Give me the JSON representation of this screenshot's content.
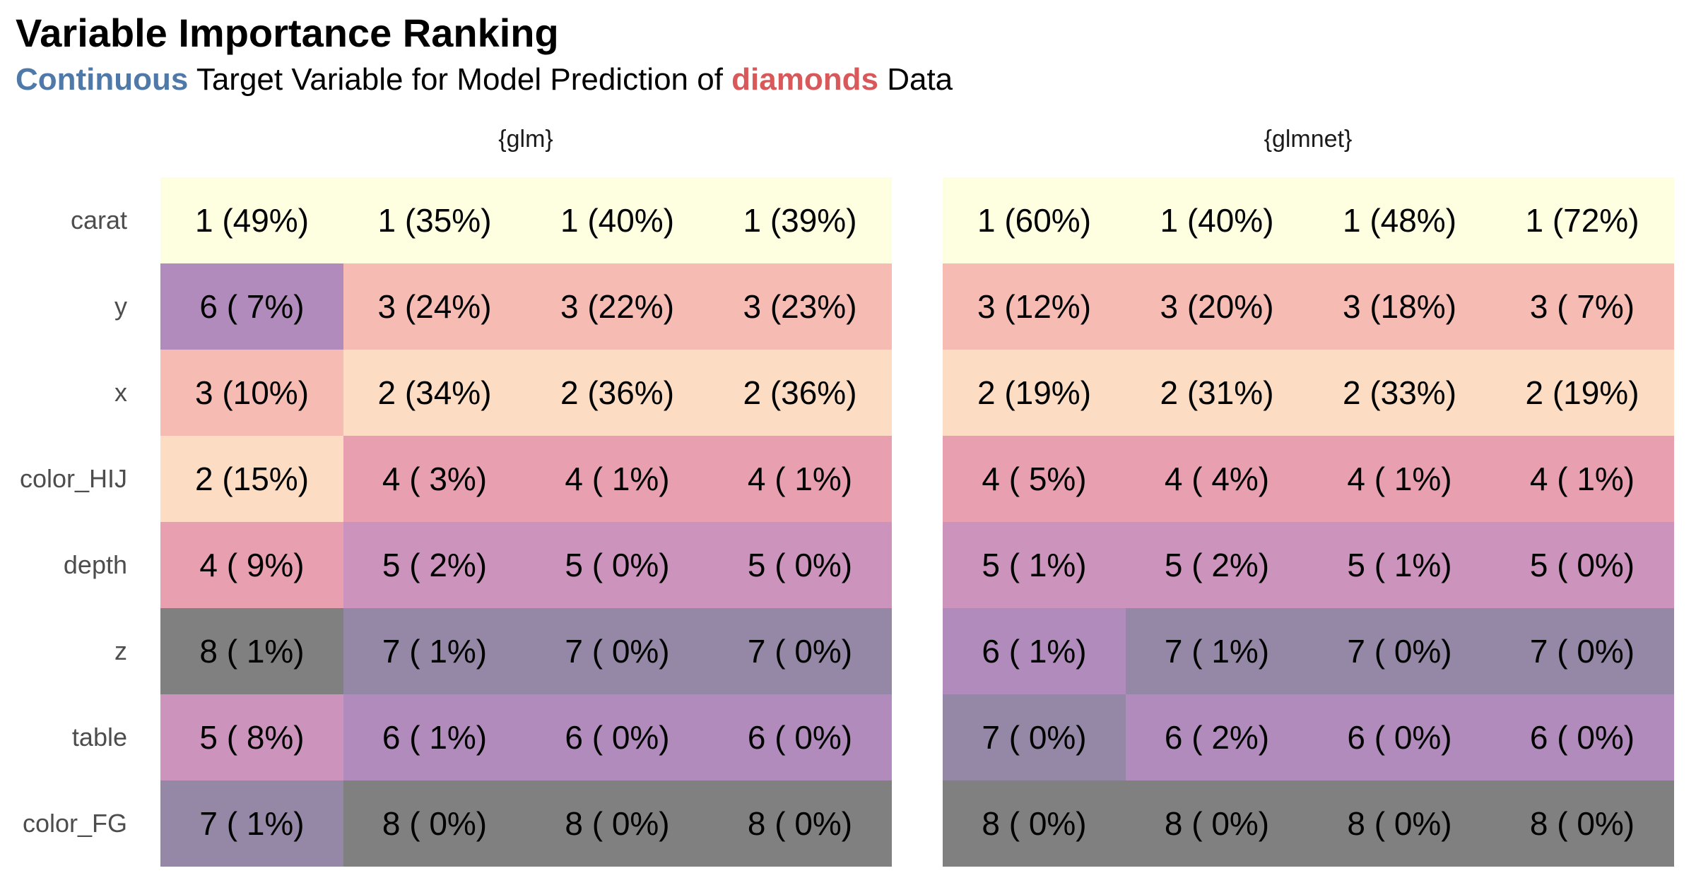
{
  "title": "Variable Importance Ranking",
  "subtitle": {
    "kw1": "Continuous",
    "mid": " Target Variable for Model Prediction of ",
    "kw2": "diamonds",
    "end": " Data",
    "kw1_color": "#4f79a8",
    "kw2_color": "#d9585a"
  },
  "chart_data": {
    "type": "heatmap",
    "title": "Variable Importance Ranking",
    "subtitle": "Continuous Target Variable for Model Prediction of diamonds Data",
    "rows": [
      "carat",
      "y",
      "x",
      "color_HIJ",
      "depth",
      "z",
      "table",
      "color_FG"
    ],
    "rank_colors": {
      "1": "#fefee0",
      "2": "#fcdcc2",
      "3": "#f6bcb4",
      "4": "#e89fb0",
      "5": "#cc94bc",
      "6": "#b08bbc",
      "7": "#9587a6",
      "8": "#808080"
    },
    "facets": [
      {
        "name": "{glm}",
        "cells": [
          [
            {
              "rank": 1,
              "pct": "49%"
            },
            {
              "rank": 1,
              "pct": "35%"
            },
            {
              "rank": 1,
              "pct": "40%"
            },
            {
              "rank": 1,
              "pct": "39%"
            }
          ],
          [
            {
              "rank": 6,
              "pct": " 7%"
            },
            {
              "rank": 3,
              "pct": "24%"
            },
            {
              "rank": 3,
              "pct": "22%"
            },
            {
              "rank": 3,
              "pct": "23%"
            }
          ],
          [
            {
              "rank": 3,
              "pct": "10%"
            },
            {
              "rank": 2,
              "pct": "34%"
            },
            {
              "rank": 2,
              "pct": "36%"
            },
            {
              "rank": 2,
              "pct": "36%"
            }
          ],
          [
            {
              "rank": 2,
              "pct": "15%"
            },
            {
              "rank": 4,
              "pct": " 3%"
            },
            {
              "rank": 4,
              "pct": " 1%"
            },
            {
              "rank": 4,
              "pct": " 1%"
            }
          ],
          [
            {
              "rank": 4,
              "pct": " 9%"
            },
            {
              "rank": 5,
              "pct": " 2%"
            },
            {
              "rank": 5,
              "pct": " 0%"
            },
            {
              "rank": 5,
              "pct": " 0%"
            }
          ],
          [
            {
              "rank": 8,
              "pct": " 1%"
            },
            {
              "rank": 7,
              "pct": " 1%"
            },
            {
              "rank": 7,
              "pct": " 0%"
            },
            {
              "rank": 7,
              "pct": " 0%"
            }
          ],
          [
            {
              "rank": 5,
              "pct": " 8%"
            },
            {
              "rank": 6,
              "pct": " 1%"
            },
            {
              "rank": 6,
              "pct": " 0%"
            },
            {
              "rank": 6,
              "pct": " 0%"
            }
          ],
          [
            {
              "rank": 7,
              "pct": " 1%"
            },
            {
              "rank": 8,
              "pct": " 0%"
            },
            {
              "rank": 8,
              "pct": " 0%"
            },
            {
              "rank": 8,
              "pct": " 0%"
            }
          ]
        ]
      },
      {
        "name": "{glmnet}",
        "cells": [
          [
            {
              "rank": 1,
              "pct": "60%"
            },
            {
              "rank": 1,
              "pct": "40%"
            },
            {
              "rank": 1,
              "pct": "48%"
            },
            {
              "rank": 1,
              "pct": "72%"
            }
          ],
          [
            {
              "rank": 3,
              "pct": "12%"
            },
            {
              "rank": 3,
              "pct": "20%"
            },
            {
              "rank": 3,
              "pct": "18%"
            },
            {
              "rank": 3,
              "pct": " 7%"
            }
          ],
          [
            {
              "rank": 2,
              "pct": "19%"
            },
            {
              "rank": 2,
              "pct": "31%"
            },
            {
              "rank": 2,
              "pct": "33%"
            },
            {
              "rank": 2,
              "pct": "19%"
            }
          ],
          [
            {
              "rank": 4,
              "pct": " 5%"
            },
            {
              "rank": 4,
              "pct": " 4%"
            },
            {
              "rank": 4,
              "pct": " 1%"
            },
            {
              "rank": 4,
              "pct": " 1%"
            }
          ],
          [
            {
              "rank": 5,
              "pct": " 1%"
            },
            {
              "rank": 5,
              "pct": " 2%"
            },
            {
              "rank": 5,
              "pct": " 1%"
            },
            {
              "rank": 5,
              "pct": " 0%"
            }
          ],
          [
            {
              "rank": 6,
              "pct": " 1%"
            },
            {
              "rank": 7,
              "pct": " 1%"
            },
            {
              "rank": 7,
              "pct": " 0%"
            },
            {
              "rank": 7,
              "pct": " 0%"
            }
          ],
          [
            {
              "rank": 7,
              "pct": " 0%"
            },
            {
              "rank": 6,
              "pct": " 2%"
            },
            {
              "rank": 6,
              "pct": " 0%"
            },
            {
              "rank": 6,
              "pct": " 0%"
            }
          ],
          [
            {
              "rank": 8,
              "pct": " 0%"
            },
            {
              "rank": 8,
              "pct": " 0%"
            },
            {
              "rank": 8,
              "pct": " 0%"
            },
            {
              "rank": 8,
              "pct": " 0%"
            }
          ]
        ]
      }
    ]
  }
}
